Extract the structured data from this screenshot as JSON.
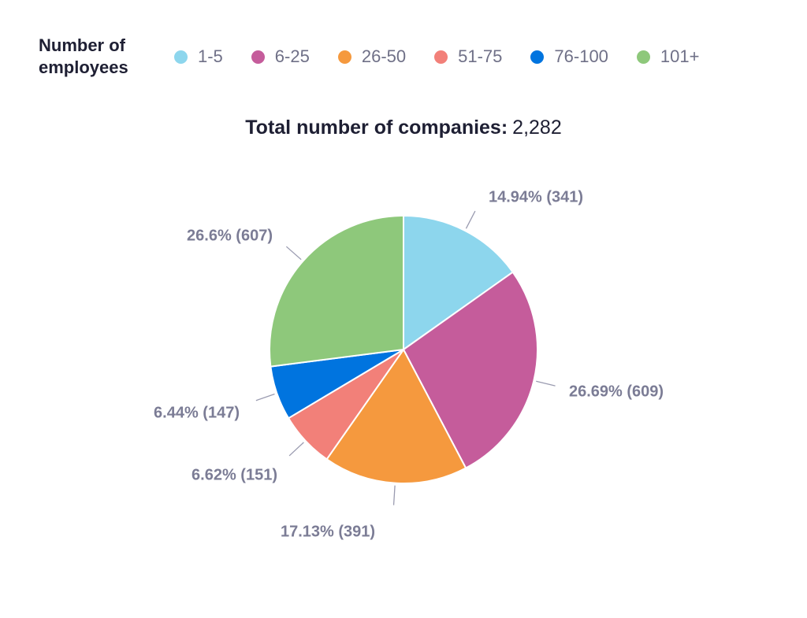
{
  "legend": {
    "title": "Number of employees",
    "title_line1": "Number of",
    "title_line2": "employees"
  },
  "total": {
    "label": "Total number of companies:",
    "value": "2,282"
  },
  "chart_data": {
    "type": "pie",
    "title": "Total number of companies: 2,282",
    "total": 2282,
    "legend_position": "top",
    "start_angle_deg": 0,
    "direction": "clockwise",
    "slices": [
      {
        "name": "1-5",
        "value": 341,
        "percent": 14.94,
        "label": "14.94% (341)",
        "color": "#8dd6ed"
      },
      {
        "name": "6-25",
        "value": 609,
        "percent": 26.69,
        "label": "26.69% (609)",
        "color": "#c55c9b"
      },
      {
        "name": "26-50",
        "value": 391,
        "percent": 17.13,
        "label": "17.13% (391)",
        "color": "#f5993e"
      },
      {
        "name": "51-75",
        "value": 151,
        "percent": 6.62,
        "label": "6.62% (151)",
        "color": "#f28079"
      },
      {
        "name": "76-100",
        "value": 147,
        "percent": 6.44,
        "label": "6.44% (147)",
        "color": "#0074df"
      },
      {
        "name": "101+",
        "value": 607,
        "percent": 26.6,
        "label": "26.6% (607)",
        "color": "#8ec87b"
      }
    ]
  }
}
